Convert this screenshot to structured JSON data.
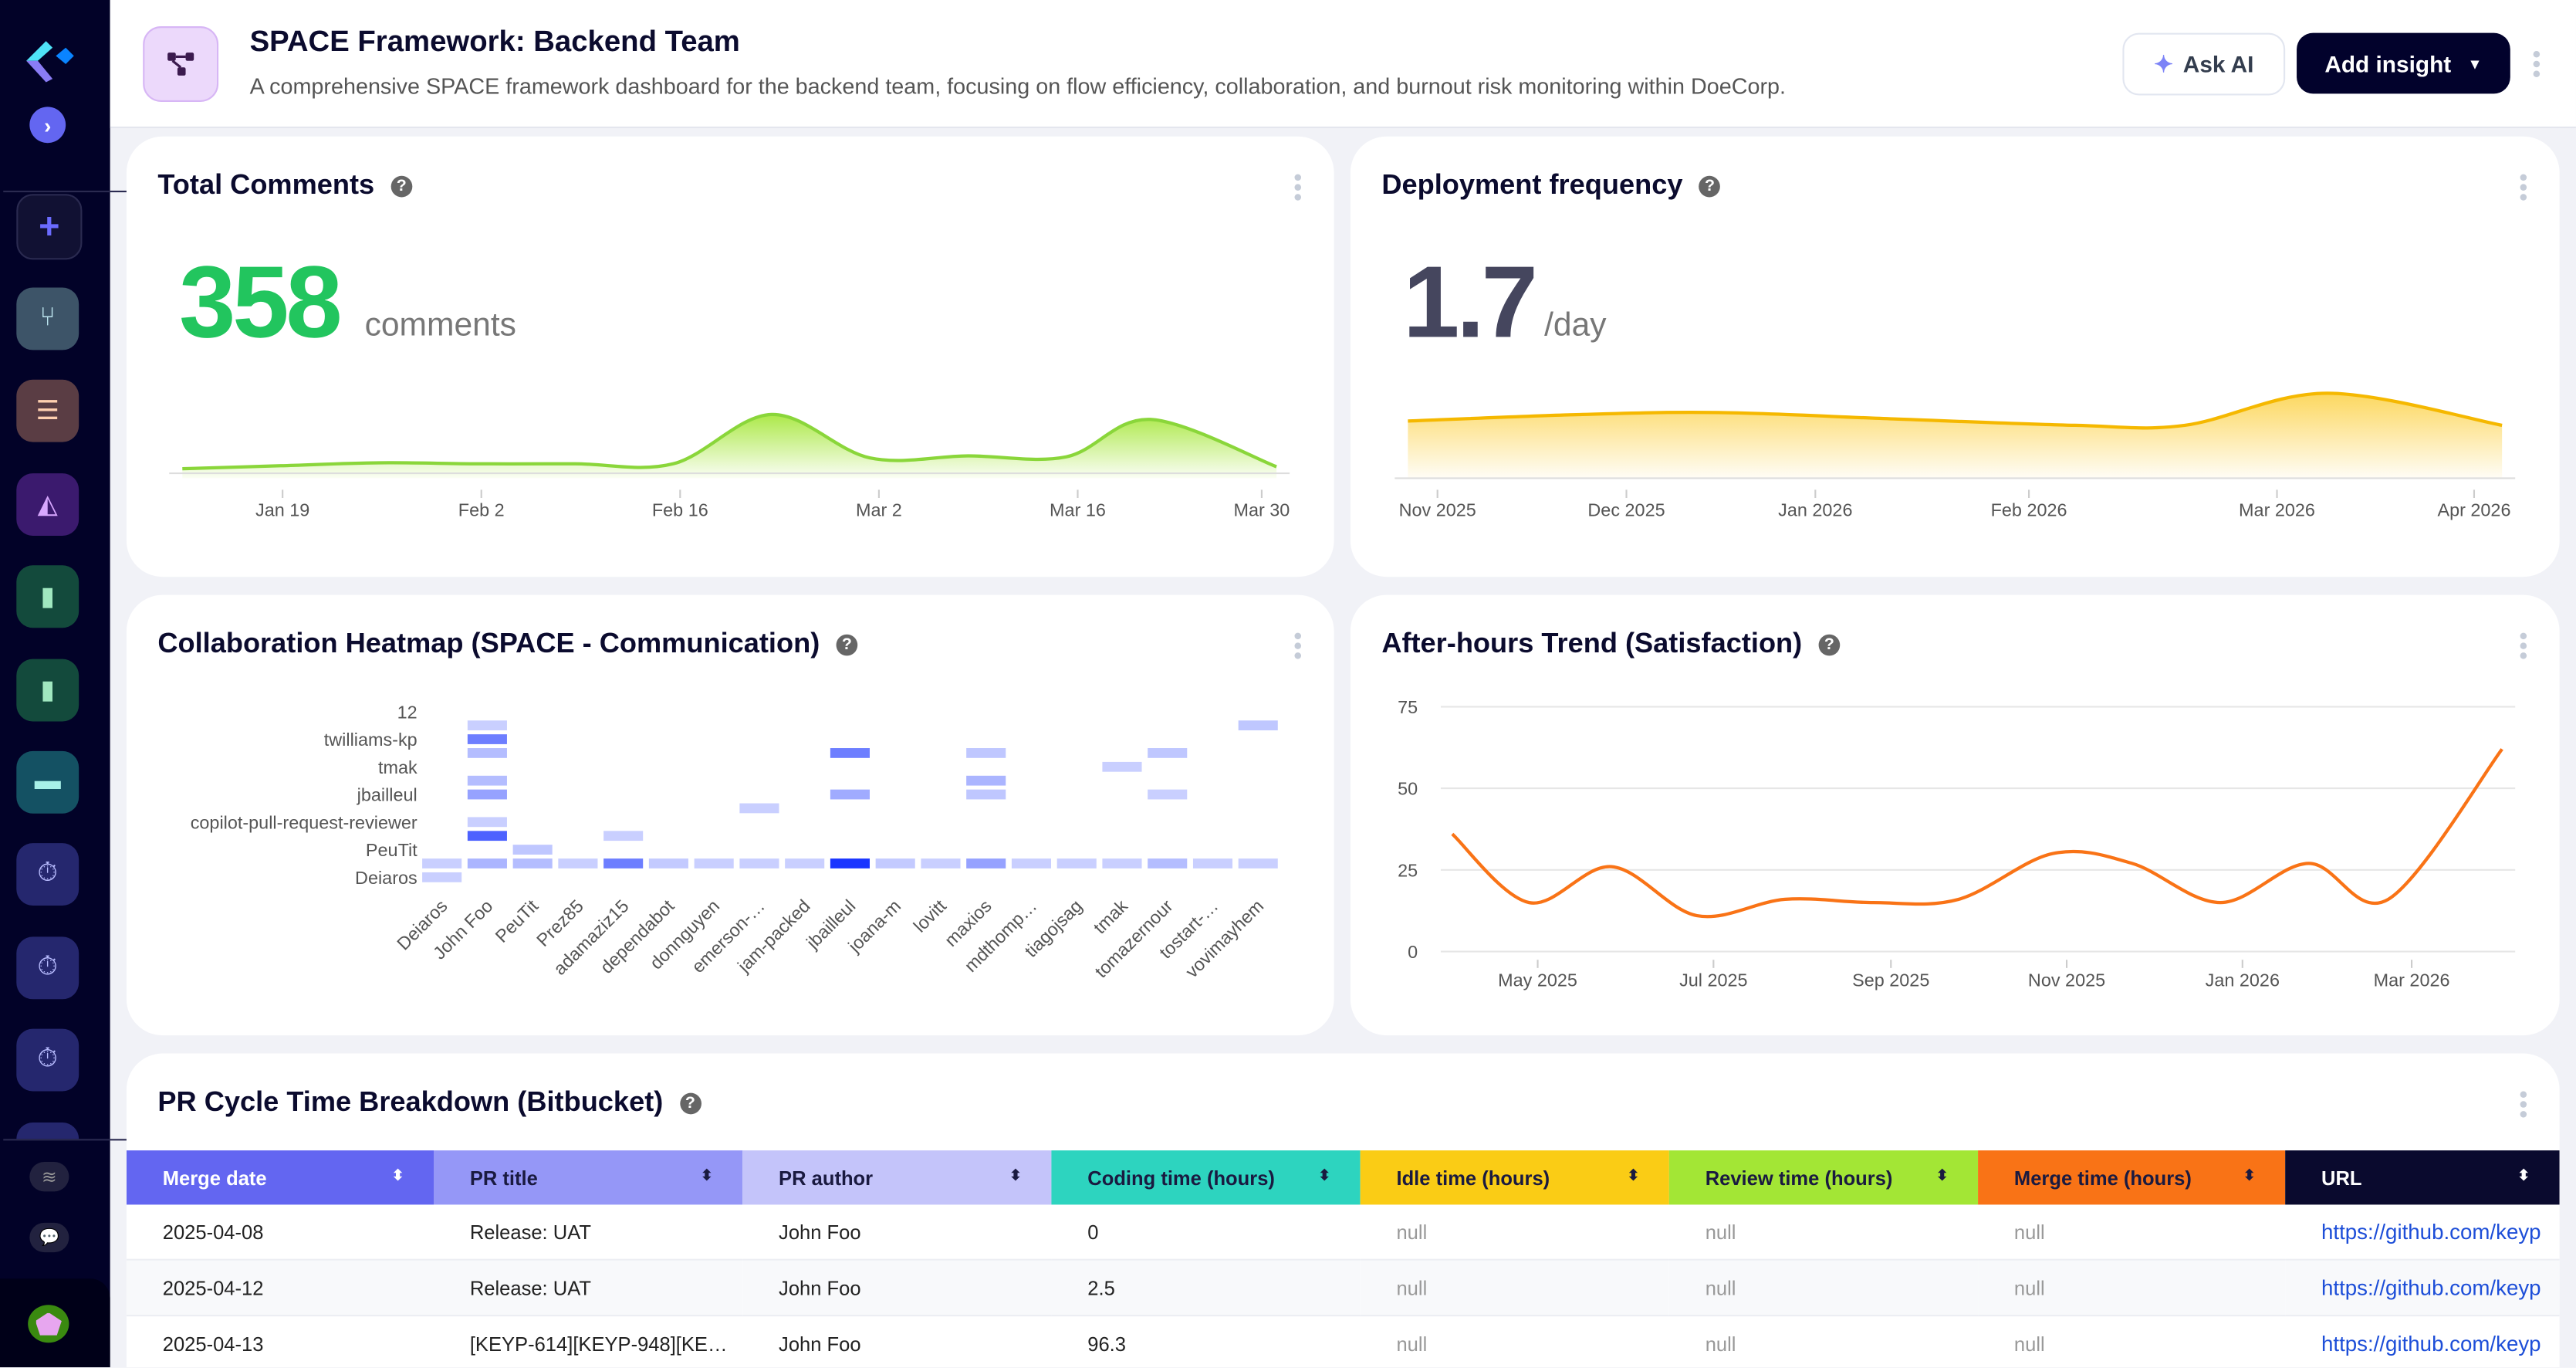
{
  "sidebar": {
    "icons": [
      "logo-icon",
      "chevron-right-icon",
      "plus-icon",
      "git-branch-icon",
      "checklist-icon",
      "area-chart-icon",
      "file-icon",
      "file-icon",
      "briefcase-icon",
      "stopwatch-icon",
      "stopwatch-icon",
      "stopwatch-icon",
      "layers-icon",
      "chat-icon",
      "avatar"
    ],
    "colors": {
      "bg": "#020228",
      "branch": "#3d5468",
      "checklist": "#5a3d44",
      "chart": "#3b1a6e",
      "file": "#134a3c",
      "briefcase": "#145163",
      "stopwatch": "#25276e"
    }
  },
  "header": {
    "title": "SPACE Framework: Backend Team",
    "subtitle": "A comprehensive SPACE framework dashboard for the backend team, focusing on flow efficiency, collaboration, and burnout risk monitoring within DoeCorp.",
    "ask_ai": "Ask AI",
    "add_insight": "Add insight"
  },
  "cards": {
    "comments": {
      "title": "Total Comments",
      "help": "?",
      "value": "358",
      "unit": "comments",
      "color": "#22c55e"
    },
    "deploy": {
      "title": "Deployment frequency",
      "help": "?",
      "value": "1.7",
      "unit": "/day",
      "color": "#f5b800"
    },
    "heatmap": {
      "title": "Collaboration Heatmap (SPACE - Communication)",
      "help": "?"
    },
    "afterhours": {
      "title": "After-hours Trend (Satisfaction)",
      "help": "?",
      "color": "#f97316"
    },
    "table": {
      "title": "PR Cycle Time Breakdown (Bitbucket)",
      "help": "?"
    }
  },
  "chart_data": [
    {
      "type": "area",
      "id": "comments",
      "x_ticks": [
        "Jan 19",
        "Feb 2",
        "Feb 16",
        "Mar 2",
        "Mar 16",
        "Mar 30"
      ],
      "x": [
        "2025-01-12",
        "2025-01-19",
        "2025-01-26",
        "2025-02-02",
        "2025-02-09",
        "2025-02-16",
        "2025-02-23",
        "2025-03-02",
        "2025-03-09",
        "2025-03-16",
        "2025-03-22",
        "2025-03-31"
      ],
      "values": [
        3,
        6,
        9,
        8,
        8,
        8,
        58,
        14,
        16,
        15,
        53,
        5
      ],
      "grid": false
    },
    {
      "type": "area",
      "id": "deploy",
      "x_ticks": [
        "Nov 2025",
        "Dec 2025",
        "Jan 2026",
        "Feb 2026",
        "Mar 2026",
        "Apr 2026"
      ],
      "x": [
        "2025-10-25",
        "2025-11-20",
        "2025-12-12",
        "2026-01-08",
        "2026-02-05",
        "2026-02-22",
        "2026-03-16",
        "2026-04-12"
      ],
      "values": [
        1.3,
        1.45,
        1.5,
        1.35,
        1.2,
        1.2,
        1.95,
        1.2
      ],
      "grid": false
    },
    {
      "type": "heatmap",
      "id": "heatmap",
      "x_labels": [
        "Deiaros",
        "John Foo",
        "PeuTit",
        "Prez85",
        "adamaziz15",
        "dependabot",
        "donnguyen",
        "emerson-…",
        "jam-packed",
        "jbailleul",
        "joana-m",
        "lovitt",
        "maxios",
        "mdthomp…",
        "tiagojsag",
        "tmak",
        "tomazernour",
        "tostart-…",
        "vovimayhem"
      ],
      "y_labels": [
        {
          "row": 0,
          "label": "12"
        },
        {
          "row": 2,
          "label": "twilliams-kp"
        },
        {
          "row": 4,
          "label": "tmak"
        },
        {
          "row": 6,
          "label": "jbailleul"
        },
        {
          "row": 8,
          "label": "copilot-pull-request-reviewer"
        },
        {
          "row": 10,
          "label": "PeuTit"
        },
        {
          "row": 12,
          "label": "Deiaros"
        }
      ],
      "rows": 13,
      "color": "#1a35ff",
      "cells": [
        [
          1,
          1,
          0.15
        ],
        [
          1,
          18,
          0.2
        ],
        [
          2,
          1,
          0.6
        ],
        [
          3,
          1,
          0.25
        ],
        [
          3,
          9,
          0.6
        ],
        [
          3,
          12,
          0.2
        ],
        [
          3,
          16,
          0.2
        ],
        [
          4,
          15,
          0.15
        ],
        [
          5,
          1,
          0.25
        ],
        [
          5,
          12,
          0.3
        ],
        [
          6,
          1,
          0.4
        ],
        [
          6,
          9,
          0.35
        ],
        [
          6,
          12,
          0.2
        ],
        [
          6,
          16,
          0.15
        ],
        [
          7,
          7,
          0.15
        ],
        [
          8,
          1,
          0.15
        ],
        [
          9,
          1,
          0.75
        ],
        [
          9,
          4,
          0.15
        ],
        [
          10,
          2,
          0.2
        ],
        [
          11,
          0,
          0.15
        ],
        [
          11,
          1,
          0.3
        ],
        [
          11,
          2,
          0.25
        ],
        [
          11,
          3,
          0.15
        ],
        [
          11,
          4,
          0.6
        ],
        [
          11,
          5,
          0.18
        ],
        [
          11,
          6,
          0.15
        ],
        [
          11,
          7,
          0.15
        ],
        [
          11,
          8,
          0.15
        ],
        [
          11,
          9,
          1.0
        ],
        [
          11,
          10,
          0.18
        ],
        [
          11,
          11,
          0.15
        ],
        [
          11,
          12,
          0.4
        ],
        [
          11,
          13,
          0.15
        ],
        [
          11,
          14,
          0.15
        ],
        [
          11,
          15,
          0.15
        ],
        [
          11,
          16,
          0.25
        ],
        [
          11,
          17,
          0.15
        ],
        [
          11,
          18,
          0.15
        ],
        [
          12,
          0,
          0.15
        ]
      ]
    },
    {
      "type": "line",
      "id": "afterhours",
      "ylim": [
        0,
        75
      ],
      "y_ticks": [
        "0",
        "25",
        "50",
        "75"
      ],
      "grid": true,
      "x_ticks": [
        "May 2025",
        "Jul 2025",
        "Sep 2025",
        "Nov 2025",
        "Jan 2026",
        "Mar 2026"
      ],
      "x": [
        "2025-04-06",
        "2025-05-03",
        "2025-06-01",
        "2025-07-01",
        "2025-08-01",
        "2025-09-01",
        "2025-10-01",
        "2025-11-03",
        "2025-12-01",
        "2026-01-01",
        "2026-02-01",
        "2026-03-01",
        "2026-04-10"
      ],
      "values": [
        36,
        15,
        26,
        11,
        16,
        15,
        16,
        30,
        27,
        15,
        27,
        16,
        62
      ]
    }
  ],
  "table": {
    "columns": [
      {
        "label": "Merge date",
        "bg": "#6366f1",
        "fg": "#ffffff"
      },
      {
        "label": "PR title",
        "bg": "#9597f7",
        "fg": "#1a1a40"
      },
      {
        "label": "PR author",
        "bg": "#c4c4fa",
        "fg": "#1a1a40"
      },
      {
        "label": "Coding time (hours)",
        "bg": "#2dd4bf",
        "fg": "#1a1a40"
      },
      {
        "label": "Idle time (hours)",
        "bg": "#facc15",
        "fg": "#1a1a40"
      },
      {
        "label": "Review time (hours)",
        "bg": "#a3e635",
        "fg": "#1a1a40"
      },
      {
        "label": "Merge time (hours)",
        "bg": "#f97316",
        "fg": "#1a1a40"
      },
      {
        "label": "URL",
        "bg": "#0a0a2e",
        "fg": "#ffffff"
      }
    ],
    "rows": [
      [
        "2025-04-08",
        "Release: UAT",
        "John Foo",
        "0",
        "null",
        "null",
        "null",
        "https://github.com/keyp"
      ],
      [
        "2025-04-12",
        "Release: UAT",
        "John Foo",
        "2.5",
        "null",
        "null",
        "null",
        "https://github.com/keyp"
      ],
      [
        "2025-04-13",
        "[KEYP-614][KEYP-948][KE…",
        "John Foo",
        "96.3",
        "null",
        "null",
        "null",
        "https://github.com/keyp"
      ]
    ]
  }
}
